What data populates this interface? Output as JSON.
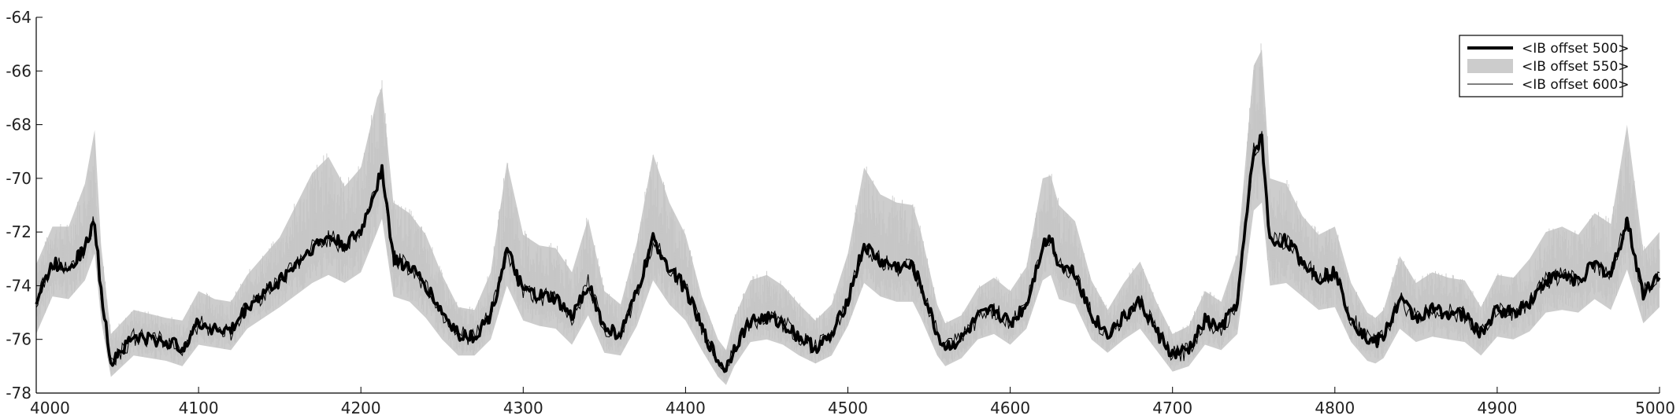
{
  "chart_data": {
    "type": "line",
    "title": "",
    "xlabel": "",
    "ylabel": "",
    "xlim": [
      4000,
      5000
    ],
    "ylim": [
      -78,
      -64
    ],
    "xticks": [
      4000,
      4100,
      4200,
      4300,
      4400,
      4500,
      4600,
      4700,
      4800,
      4900,
      5000
    ],
    "yticks": [
      -78,
      -76,
      -74,
      -72,
      -70,
      -68,
      -66,
      -64
    ],
    "xtick_labels": [
      "4000",
      "4100",
      "4200",
      "4300",
      "4400",
      "4500",
      "4600",
      "4700",
      "4800",
      "4900",
      "5000"
    ],
    "ytick_labels": [
      "-78",
      "-76",
      "-74",
      "-72",
      "-70",
      "-68",
      "-66",
      "-64"
    ],
    "grid": false,
    "legend_position": "top-right",
    "legend": [
      {
        "label": "<IB offset 500>",
        "style": "thick-line",
        "color": "#000000"
      },
      {
        "label": "<IB offset 550>",
        "style": "band",
        "color": "#cccccc"
      },
      {
        "label": "<IB offset 600>",
        "style": "thin-line",
        "color": "#000000"
      }
    ],
    "x": [
      4000,
      4010,
      4020,
      4030,
      4036,
      4040,
      4046,
      4060,
      4080,
      4090,
      4100,
      4110,
      4120,
      4130,
      4150,
      4170,
      4180,
      4190,
      4200,
      4210,
      4213,
      4220,
      4230,
      4240,
      4250,
      4260,
      4270,
      4280,
      4290,
      4300,
      4310,
      4320,
      4330,
      4340,
      4350,
      4360,
      4370,
      4380,
      4390,
      4400,
      4410,
      4420,
      4425,
      4430,
      4440,
      4450,
      4460,
      4470,
      4480,
      4490,
      4500,
      4510,
      4520,
      4530,
      4540,
      4545,
      4555,
      4560,
      4570,
      4580,
      4590,
      4600,
      4610,
      4620,
      4625,
      4630,
      4640,
      4650,
      4660,
      4670,
      4680,
      4690,
      4700,
      4710,
      4720,
      4730,
      4740,
      4750,
      4755,
      4760,
      4770,
      4780,
      4790,
      4800,
      4810,
      4820,
      4825,
      4830,
      4840,
      4850,
      4860,
      4870,
      4880,
      4890,
      4900,
      4910,
      4920,
      4930,
      4940,
      4950,
      4960,
      4970,
      4980,
      4990,
      5000
    ],
    "series": [
      {
        "values": [
          -74.6,
          -73.2,
          -73.3,
          -72.6,
          -71.6,
          -74.3,
          -76.8,
          -75.9,
          -76.1,
          -76.3,
          -75.4,
          -75.6,
          -75.7,
          -74.8,
          -73.8,
          -72.6,
          -72.2,
          -72.5,
          -72.0,
          -70.2,
          -69.6,
          -73.0,
          -73.3,
          -74.0,
          -75.0,
          -75.8,
          -75.9,
          -75.1,
          -72.7,
          -74.2,
          -74.4,
          -74.5,
          -75.2,
          -73.9,
          -75.6,
          -75.8,
          -74.3,
          -72.3,
          -73.3,
          -74.1,
          -75.6,
          -76.8,
          -77.1,
          -76.3,
          -75.3,
          -75.2,
          -75.4,
          -75.9,
          -76.3,
          -75.9,
          -74.5,
          -72.5,
          -73.1,
          -73.3,
          -73.3,
          -74.0,
          -75.8,
          -76.3,
          -76.0,
          -75.2,
          -74.9,
          -75.4,
          -74.7,
          -72.5,
          -72.2,
          -73.2,
          -73.5,
          -75.1,
          -75.8,
          -75.2,
          -74.6,
          -75.7,
          -76.6,
          -76.4,
          -75.3,
          -75.6,
          -74.6,
          -69.0,
          -68.5,
          -72.4,
          -72.3,
          -73.1,
          -73.7,
          -73.5,
          -75.2,
          -76.0,
          -76.1,
          -75.9,
          -74.5,
          -75.2,
          -74.9,
          -75.0,
          -75.1,
          -75.8,
          -74.9,
          -75.0,
          -74.6,
          -73.8,
          -73.6,
          -73.8,
          -73.2,
          -73.6,
          -71.6,
          -74.3,
          -73.5
        ]
      },
      {
        "values": [
          -74.6,
          -73.2,
          -73.3,
          -72.6,
          -71.6,
          -74.3,
          -76.8,
          -75.9,
          -76.1,
          -76.3,
          -75.4,
          -75.6,
          -75.7,
          -74.8,
          -73.8,
          -72.6,
          -72.2,
          -72.5,
          -72.0,
          -70.2,
          -69.6,
          -73.0,
          -73.3,
          -74.0,
          -75.0,
          -75.8,
          -75.9,
          -75.1,
          -72.7,
          -74.2,
          -74.4,
          -74.5,
          -75.2,
          -73.9,
          -75.6,
          -75.8,
          -74.3,
          -72.3,
          -73.3,
          -74.1,
          -75.6,
          -76.8,
          -77.1,
          -76.3,
          -75.3,
          -75.2,
          -75.4,
          -75.9,
          -76.3,
          -75.9,
          -74.5,
          -72.5,
          -73.1,
          -73.3,
          -73.3,
          -74.0,
          -75.8,
          -76.3,
          -76.0,
          -75.2,
          -74.9,
          -75.4,
          -74.7,
          -72.5,
          -72.2,
          -73.2,
          -73.5,
          -75.1,
          -75.8,
          -75.2,
          -74.6,
          -75.7,
          -76.6,
          -76.4,
          -75.3,
          -75.6,
          -74.6,
          -69.0,
          -68.5,
          -72.4,
          -72.3,
          -73.1,
          -73.7,
          -73.5,
          -75.2,
          -76.0,
          -76.1,
          -75.9,
          -74.5,
          -75.2,
          -74.9,
          -75.0,
          -75.1,
          -75.8,
          -74.9,
          -75.0,
          -74.6,
          -73.8,
          -73.6,
          -73.8,
          -73.2,
          -73.6,
          -71.6,
          -74.3,
          -73.5
        ],
        "lower": [
          -75.8,
          -74.4,
          -74.5,
          -73.8,
          -72.8,
          -75.3,
          -77.4,
          -76.6,
          -76.8,
          -77.0,
          -76.2,
          -76.3,
          -76.4,
          -75.6,
          -74.8,
          -73.9,
          -73.6,
          -73.9,
          -73.5,
          -72.0,
          -71.5,
          -74.4,
          -74.6,
          -75.2,
          -76.0,
          -76.6,
          -76.6,
          -76.0,
          -74.0,
          -75.3,
          -75.5,
          -75.6,
          -76.2,
          -75.1,
          -76.5,
          -76.6,
          -75.5,
          -73.8,
          -74.7,
          -75.3,
          -76.4,
          -77.4,
          -77.7,
          -77.0,
          -76.1,
          -76.0,
          -76.2,
          -76.6,
          -76.9,
          -76.6,
          -75.5,
          -73.9,
          -74.4,
          -74.6,
          -74.6,
          -75.2,
          -76.6,
          -77.0,
          -76.7,
          -76.0,
          -75.8,
          -76.2,
          -75.6,
          -73.8,
          -73.6,
          -74.5,
          -74.7,
          -76.0,
          -76.5,
          -76.0,
          -75.6,
          -76.4,
          -77.2,
          -77.0,
          -76.2,
          -76.4,
          -75.8,
          -71.2,
          -70.9,
          -74.0,
          -73.9,
          -74.4,
          -74.9,
          -74.8,
          -76.1,
          -76.8,
          -76.9,
          -76.7,
          -75.6,
          -76.1,
          -75.9,
          -76.0,
          -76.1,
          -76.6,
          -75.9,
          -76.0,
          -75.7,
          -75.0,
          -74.9,
          -75.0,
          -74.5,
          -74.9,
          -73.4,
          -75.4,
          -74.8
        ],
        "upper": [
          -73.2,
          -71.8,
          -71.8,
          -70.2,
          -68.2,
          -72.5,
          -75.8,
          -74.9,
          -75.2,
          -75.3,
          -74.2,
          -74.5,
          -74.6,
          -73.6,
          -72.2,
          -69.8,
          -69.2,
          -70.3,
          -69.6,
          -67.0,
          -66.6,
          -70.9,
          -71.3,
          -72.1,
          -73.6,
          -74.8,
          -74.9,
          -73.5,
          -69.4,
          -72.1,
          -72.5,
          -72.6,
          -73.5,
          -71.5,
          -74.2,
          -74.7,
          -72.4,
          -69.1,
          -70.9,
          -72.1,
          -74.4,
          -76.0,
          -76.4,
          -75.2,
          -73.8,
          -73.6,
          -74.0,
          -74.7,
          -75.3,
          -74.7,
          -72.8,
          -69.6,
          -70.6,
          -70.9,
          -71.0,
          -72.0,
          -74.7,
          -75.4,
          -75.1,
          -74.1,
          -73.7,
          -74.2,
          -73.3,
          -70.0,
          -69.9,
          -71.0,
          -71.6,
          -73.8,
          -74.9,
          -73.9,
          -73.1,
          -74.6,
          -75.8,
          -75.5,
          -74.2,
          -74.6,
          -72.8,
          -65.8,
          -65.2,
          -70.0,
          -70.2,
          -71.4,
          -72.1,
          -71.8,
          -73.9,
          -75.0,
          -75.2,
          -74.9,
          -72.9,
          -73.9,
          -73.5,
          -73.7,
          -73.8,
          -74.8,
          -73.6,
          -73.7,
          -73.0,
          -72.0,
          -71.8,
          -72.1,
          -71.3,
          -71.7,
          -68.0,
          -72.7,
          -72.0
        ]
      },
      {
        "values": [
          -74.6,
          -73.2,
          -73.3,
          -72.6,
          -71.6,
          -74.3,
          -76.8,
          -75.9,
          -76.1,
          -76.3,
          -75.4,
          -75.6,
          -75.7,
          -74.8,
          -73.8,
          -72.6,
          -72.2,
          -72.5,
          -72.0,
          -70.2,
          -69.6,
          -73.0,
          -73.3,
          -74.0,
          -75.0,
          -75.8,
          -75.9,
          -75.1,
          -72.7,
          -74.2,
          -74.4,
          -74.5,
          -75.2,
          -73.9,
          -75.6,
          -75.8,
          -74.3,
          -72.3,
          -73.3,
          -74.1,
          -75.6,
          -76.8,
          -77.1,
          -76.3,
          -75.3,
          -75.2,
          -75.4,
          -75.9,
          -76.3,
          -75.9,
          -74.5,
          -72.5,
          -73.1,
          -73.3,
          -73.3,
          -74.0,
          -75.8,
          -76.3,
          -76.0,
          -75.2,
          -74.9,
          -75.4,
          -74.7,
          -72.5,
          -72.2,
          -73.2,
          -73.5,
          -75.1,
          -75.8,
          -75.2,
          -74.6,
          -75.7,
          -76.6,
          -76.4,
          -75.3,
          -75.6,
          -74.6,
          -69.0,
          -68.5,
          -72.4,
          -72.3,
          -73.1,
          -73.7,
          -73.5,
          -75.2,
          -76.0,
          -76.1,
          -75.9,
          -74.5,
          -75.2,
          -74.9,
          -75.0,
          -75.1,
          -75.8,
          -74.9,
          -75.0,
          -74.6,
          -73.8,
          -73.6,
          -73.8,
          -73.2,
          -73.6,
          -71.6,
          -74.3,
          -73.5
        ]
      }
    ]
  }
}
